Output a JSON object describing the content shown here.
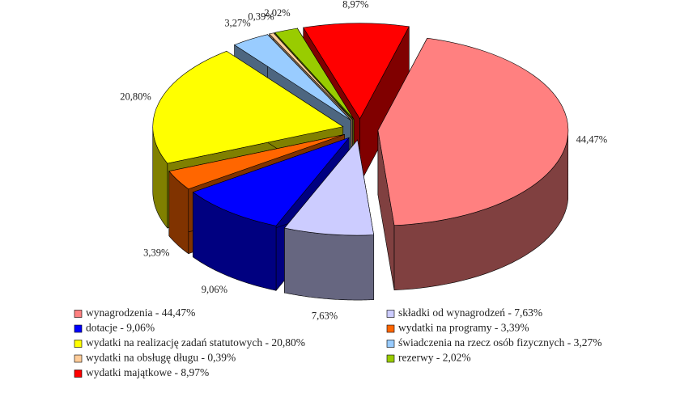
{
  "chart_data": {
    "type": "pie3d",
    "categories": [
      "wynagrodzenia - 44,47%",
      "składki od wynagrodzeń - 7,63%",
      "dotacje - 9,06%",
      "wydatki na programy - 3,39%",
      "wydatki na realizację zadań statutowych - 20,80%",
      "świadczenia na rzecz osób fizycznych - 3,27%",
      "wydatki na obsługę długu - 0,39%",
      "rezerwy - 2,02%",
      "wydatki majątkowe - 8,97%"
    ],
    "values": [
      44.47,
      7.63,
      9.06,
      3.39,
      20.8,
      3.27,
      0.39,
      2.02,
      8.97
    ],
    "value_labels": [
      "44,47%",
      "7,63%",
      "9,06%",
      "3,39%",
      "20,80%",
      "3,27%",
      "0,39%",
      "2,02%",
      "8,97%"
    ],
    "colors": [
      "#ff8080",
      "#ccccff",
      "#0000ff",
      "#ff6600",
      "#ffff00",
      "#99ccff",
      "#ffcc99",
      "#99cc00",
      "#ff0000"
    ],
    "legend": "bottom"
  }
}
